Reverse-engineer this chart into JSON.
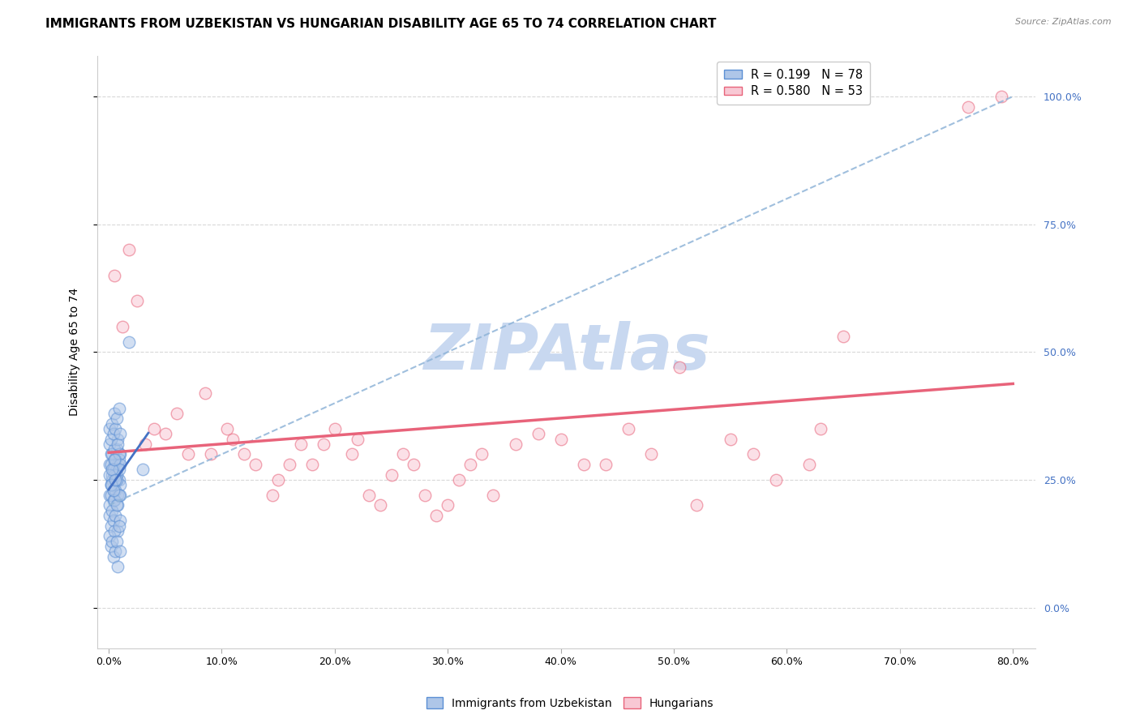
{
  "title": "IMMIGRANTS FROM UZBEKISTAN VS HUNGARIAN DISABILITY AGE 65 TO 74 CORRELATION CHART",
  "source": "Source: ZipAtlas.com",
  "ylabel": "Disability Age 65 to 74",
  "x_tick_labels": [
    "0.0%",
    "10.0%",
    "20.0%",
    "30.0%",
    "40.0%",
    "50.0%",
    "60.0%",
    "70.0%",
    "80.0%"
  ],
  "x_tick_values": [
    0.0,
    10.0,
    20.0,
    30.0,
    40.0,
    50.0,
    60.0,
    70.0,
    80.0
  ],
  "y_tick_labels_right": [
    "0.0%",
    "25.0%",
    "50.0%",
    "75.0%",
    "100.0%"
  ],
  "y_tick_values_right": [
    0.0,
    25.0,
    50.0,
    75.0,
    100.0
  ],
  "xlim": [
    -1.0,
    82.0
  ],
  "ylim": [
    -8.0,
    108.0
  ],
  "legend_series": [
    {
      "label": "R = 0.199   N = 78"
    },
    {
      "label": "R = 0.580   N = 53"
    }
  ],
  "legend_labels_bottom": [
    "Immigrants from Uzbekistan",
    "Hungarians"
  ],
  "blue_scatter_x": [
    0.1,
    0.2,
    0.3,
    0.4,
    0.5,
    0.6,
    0.7,
    0.8,
    0.9,
    1.0,
    0.1,
    0.2,
    0.3,
    0.4,
    0.5,
    0.6,
    0.7,
    0.8,
    0.9,
    1.0,
    0.1,
    0.2,
    0.3,
    0.4,
    0.5,
    0.6,
    0.7,
    0.8,
    0.9,
    1.0,
    0.1,
    0.2,
    0.3,
    0.4,
    0.5,
    0.6,
    0.7,
    0.8,
    0.9,
    1.0,
    0.1,
    0.2,
    0.3,
    0.4,
    0.5,
    0.6,
    0.7,
    0.8,
    0.9,
    1.0,
    0.1,
    0.2,
    0.3,
    0.4,
    0.5,
    0.6,
    0.7,
    0.8,
    0.9,
    1.0,
    0.1,
    0.2,
    0.3,
    0.4,
    0.5,
    0.6,
    0.7,
    0.8,
    0.9,
    1.0,
    0.1,
    0.2,
    0.3,
    0.4,
    0.5,
    0.6,
    1.8,
    3.0
  ],
  "blue_scatter_y": [
    28.0,
    30.0,
    25.0,
    27.0,
    29.0,
    26.0,
    31.0,
    28.0,
    25.0,
    30.0,
    22.0,
    24.0,
    26.0,
    23.0,
    28.0,
    25.0,
    27.0,
    22.0,
    29.0,
    24.0,
    32.0,
    28.0,
    30.0,
    27.0,
    31.0,
    29.0,
    26.0,
    33.0,
    30.0,
    28.0,
    20.0,
    22.0,
    24.0,
    21.0,
    26.0,
    23.0,
    25.0,
    20.0,
    27.0,
    22.0,
    18.0,
    16.0,
    19.0,
    17.0,
    21.0,
    18.0,
    20.0,
    15.0,
    22.0,
    17.0,
    35.0,
    33.0,
    36.0,
    34.0,
    38.0,
    35.0,
    37.0,
    32.0,
    39.0,
    34.0,
    14.0,
    12.0,
    13.0,
    10.0,
    15.0,
    11.0,
    13.0,
    8.0,
    16.0,
    11.0,
    26.0,
    24.0,
    27.0,
    23.0,
    29.0,
    25.0,
    52.0,
    27.0
  ],
  "pink_scatter_x": [
    0.5,
    1.2,
    1.8,
    2.5,
    3.2,
    4.0,
    5.0,
    6.0,
    7.0,
    8.5,
    9.0,
    10.5,
    11.0,
    12.0,
    13.0,
    14.5,
    15.0,
    16.0,
    17.0,
    18.0,
    19.0,
    20.0,
    21.5,
    22.0,
    23.0,
    24.0,
    25.0,
    26.0,
    27.0,
    28.0,
    29.0,
    30.0,
    31.0,
    32.0,
    33.0,
    34.0,
    36.0,
    38.0,
    40.0,
    42.0,
    44.0,
    46.0,
    48.0,
    50.5,
    52.0,
    55.0,
    57.0,
    59.0,
    62.0,
    63.0,
    65.0,
    76.0,
    79.0
  ],
  "pink_scatter_y": [
    65.0,
    55.0,
    70.0,
    60.0,
    32.0,
    35.0,
    34.0,
    38.0,
    30.0,
    42.0,
    30.0,
    35.0,
    33.0,
    30.0,
    28.0,
    22.0,
    25.0,
    28.0,
    32.0,
    28.0,
    32.0,
    35.0,
    30.0,
    33.0,
    22.0,
    20.0,
    26.0,
    30.0,
    28.0,
    22.0,
    18.0,
    20.0,
    25.0,
    28.0,
    30.0,
    22.0,
    32.0,
    34.0,
    33.0,
    28.0,
    28.0,
    35.0,
    30.0,
    47.0,
    20.0,
    33.0,
    30.0,
    25.0,
    28.0,
    35.0,
    53.0,
    98.0,
    100.0
  ],
  "blue_line_color": "#4472c4",
  "blue_dot_fill": "#aec6e8",
  "blue_dot_edge": "#5b8fd4",
  "pink_line_color": "#e8637a",
  "pink_dot_fill": "#f8c8d4",
  "pink_dot_edge": "#e8637a",
  "blue_dash_line_color": "#8fb4d8",
  "grid_color": "#d8d8d8",
  "watermark_color": "#c8d8f0",
  "title_fontsize": 11,
  "axis_label_fontsize": 10,
  "tick_fontsize": 9,
  "scatter_size": 110,
  "scatter_alpha": 0.55,
  "right_tick_color": "#4472c4"
}
